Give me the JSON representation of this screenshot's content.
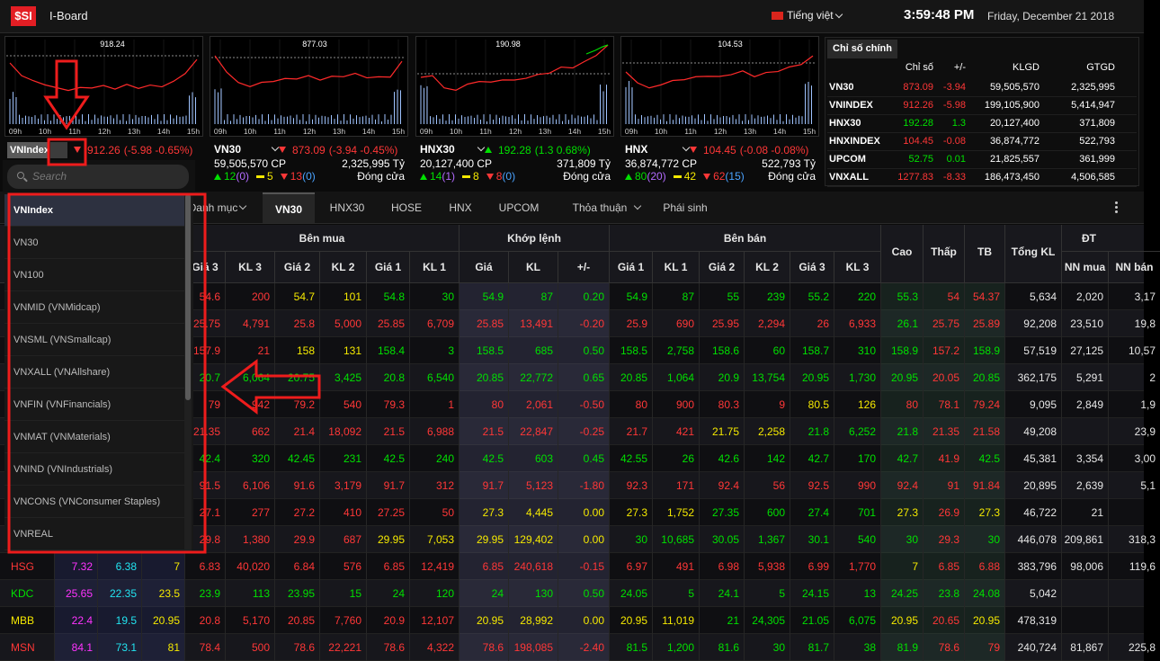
{
  "header": {
    "logo": "$SI",
    "app": "I-Board",
    "language": "Tiếng việt",
    "time": "3:59:48 PM",
    "date": "Friday, December 21 2018"
  },
  "chart_hours": [
    "09h",
    "10h",
    "11h",
    "12h",
    "13h",
    "14h",
    "15h"
  ],
  "mini_charts": [
    {
      "name": "VNIndex",
      "peak": "918.24",
      "price": "912.26",
      "change": "(-5.98 -0.65%)",
      "trend": "down"
    },
    {
      "name": "VN30",
      "peak": "877.03",
      "price": "873.09",
      "change": "(-3.94 -0.45%)",
      "trend": "down",
      "volume": "59,505,570 CP",
      "value": "2,325,995 Tỷ",
      "up": "12",
      "up_ceil": "(0)",
      "unchanged": "5",
      "down": "13",
      "down_floor": "(0)",
      "status": "Đóng cửa"
    },
    {
      "name": "HNX30",
      "peak": "190.98",
      "price": "192.28",
      "change": "(1.3 0.68%)",
      "trend": "up",
      "volume": "20,127,400 CP",
      "value": "371,809 Tỷ",
      "up": "14",
      "up_ceil": "(1)",
      "unchanged": "8",
      "down": "8",
      "down_floor": "(0)",
      "status": "Đóng cửa"
    },
    {
      "name": "HNX",
      "peak": "104.53",
      "price": "104.45",
      "change": "(-0.08 -0.08%)",
      "trend": "down",
      "volume": "36,874,772 CP",
      "value": "522,793 Tỷ",
      "up": "80",
      "up_ceil": "(20)",
      "unchanged": "42",
      "down": "62",
      "down_floor": "(15)",
      "status": "Đóng cửa"
    }
  ],
  "index_panel": {
    "tab": "Chỉ số chính",
    "columns": [
      "Chỉ số",
      "+/-",
      "KLGD",
      "GTGD"
    ],
    "rows": [
      [
        "VN30",
        "873.09",
        "-3.94",
        "59,505,570",
        "2,325,995"
      ],
      [
        "VNINDEX",
        "912.26",
        "-5.98",
        "199,105,900",
        "5,414,947"
      ],
      [
        "HNX30",
        "192.28",
        "1.3",
        "20,127,400",
        "371,809"
      ],
      [
        "HNXINDEX",
        "104.45",
        "-0.08",
        "36,874,772",
        "522,793"
      ],
      [
        "UPCOM",
        "52.75",
        "0.01",
        "21,825,557",
        "361,999"
      ],
      [
        "VNXALL",
        "1277.83",
        "-8.33",
        "186,473,450",
        "4,506,585"
      ]
    ],
    "colors": [
      "r",
      "r",
      "g",
      "r",
      "g",
      "r"
    ]
  },
  "dropdown": {
    "search_placeholder": "Search",
    "items": [
      "VNIndex",
      "VN30",
      "VN100",
      "VNMID (VNMidcap)",
      "VNSML (VNSmallcap)",
      "VNXALL (VNAllshare)",
      "VNFIN (VNFinancials)",
      "VNMAT (VNMaterials)",
      "VNIND (VNIndustrials)",
      "VNCONS (VNConsumer Staples)",
      "VNREAL"
    ],
    "selected": 0
  },
  "tabs": {
    "items": [
      "Danh mục",
      "VN30",
      "HNX30",
      "HOSE",
      "HNX",
      "UPCOM",
      "Thỏa thuận",
      "Phái sinh"
    ],
    "active": 1
  },
  "board": {
    "groups": [
      "Bên mua",
      "Khớp lệnh",
      "Bên bán",
      "ĐT"
    ],
    "tall_columns": [
      "Cao",
      "Thấp",
      "TB",
      "Tổng KL"
    ],
    "sub_columns": [
      "Giá 3",
      "KL 3",
      "Giá 2",
      "KL 2",
      "Giá 1",
      "KL 1",
      "Giá",
      "KL",
      "+/-",
      "Giá 1",
      "KL 1",
      "Giá 2",
      "KL 2",
      "Giá 3",
      "KL 3",
      "NN mua",
      "NN bán"
    ],
    "rows": [
      {
        "cells": [
          "54.6",
          "200",
          "54.7",
          "101",
          "54.8",
          "30",
          "54.9",
          "87",
          "0.20",
          "54.9",
          "87",
          "55",
          "239",
          "55.2",
          "220",
          "55.3",
          "54",
          "54.37",
          "5,634",
          "2,020",
          "3,17"
        ],
        "colors": "rryyggggggggggggrrwww"
      },
      {
        "cells": [
          "25.75",
          "4,791",
          "25.8",
          "5,000",
          "25.85",
          "6,709",
          "25.85",
          "13,491",
          "-0.20",
          "25.9",
          "690",
          "25.95",
          "2,294",
          "26",
          "6,933",
          "26.1",
          "25.75",
          "25.89",
          "92,208",
          "23,510",
          "19,8"
        ],
        "colors": "rrrrrrrrrrrrrrrgrrwww"
      },
      {
        "cells": [
          "157.9",
          "21",
          "158",
          "131",
          "158.4",
          "3",
          "158.5",
          "685",
          "0.50",
          "158.5",
          "2,758",
          "158.6",
          "60",
          "158.7",
          "310",
          "158.9",
          "157.2",
          "158.9",
          "57,519",
          "27,125",
          "10,57"
        ],
        "colors": "rryyggggggggggggrgwww"
      },
      {
        "cells": [
          "20.7",
          "6,064",
          "20.75",
          "3,425",
          "20.8",
          "6,540",
          "20.85",
          "22,772",
          "0.65",
          "20.85",
          "1,064",
          "20.9",
          "13,754",
          "20.95",
          "1,730",
          "20.95",
          "20.05",
          "20.85",
          "362,175",
          "5,291",
          "2"
        ],
        "colors": "ggggggggggggggggrgwww"
      },
      {
        "cells": [
          "79",
          "942",
          "79.2",
          "540",
          "79.3",
          "1",
          "80",
          "2,061",
          "-0.50",
          "80",
          "900",
          "80.3",
          "9",
          "80.5",
          "126",
          "80",
          "78.1",
          "79.24",
          "9,095",
          "2,849",
          "1,9"
        ],
        "colors": "rrrrrrrrrrrrryyrrrwww"
      },
      {
        "cells": [
          "21.35",
          "662",
          "21.4",
          "18,092",
          "21.5",
          "6,988",
          "21.5",
          "22,847",
          "-0.25",
          "21.7",
          "421",
          "21.75",
          "2,258",
          "21.8",
          "6,252",
          "21.8",
          "21.35",
          "21.58",
          "49,208",
          null,
          "23,9"
        ],
        "colors": "rrrrrrrrrrryygggrrwww"
      },
      {
        "cells": [
          "42.4",
          "320",
          "42.45",
          "231",
          "42.5",
          "240",
          "42.5",
          "603",
          "0.45",
          "42.55",
          "26",
          "42.6",
          "142",
          "42.7",
          "170",
          "42.7",
          "41.9",
          "42.5",
          "45,381",
          "3,354",
          "3,00"
        ],
        "colors": "ggggggggggggggggrgwww"
      },
      {
        "cells": [
          "91.5",
          "6,106",
          "91.6",
          "3,179",
          "91.7",
          "312",
          "91.7",
          "5,123",
          "-1.80",
          "92.3",
          "171",
          "92.4",
          "56",
          "92.5",
          "990",
          "92.4",
          "91",
          "91.84",
          "20,895",
          "2,639",
          "5,1"
        ],
        "colors": "rrrrrrrrrrrrrrrrrrwww"
      },
      {
        "cells": [
          "27.1",
          "277",
          "27.2",
          "410",
          "27.25",
          "50",
          "27.3",
          "4,445",
          "0.00",
          "27.3",
          "1,752",
          "27.35",
          "600",
          "27.4",
          "701",
          "27.3",
          "26.9",
          "27.3",
          "46,722",
          "21",
          null
        ],
        "colors": "rrrrrryyyyyggggyrywww"
      },
      {
        "cells": [
          "29.8",
          "1,380",
          "29.9",
          "687",
          "29.95",
          "7,053",
          "29.95",
          "129,402",
          "0.00",
          "30",
          "10,685",
          "30.05",
          "1,367",
          "30.1",
          "540",
          "30",
          "29.3",
          "30",
          "446,078",
          "209,861",
          "318,3"
        ],
        "colors": "rrrryyyyygggggggrgwww"
      },
      {
        "left": [
          "HSG",
          "7.32",
          "6.38",
          "7"
        ],
        "left_colors": "rpcy",
        "cells": [
          "6.83",
          "40,020",
          "6.84",
          "576",
          "6.85",
          "12,419",
          "6.85",
          "240,618",
          "-0.15",
          "6.97",
          "491",
          "6.98",
          "5,938",
          "6.99",
          "1,770",
          "7",
          "6.85",
          "6.88",
          "383,796",
          "98,006",
          "119,6"
        ],
        "colors": "rrrrrrrrrrrrrrryrrwww"
      },
      {
        "left": [
          "KDC",
          "25.65",
          "22.35",
          "23.5"
        ],
        "left_colors": "gpcy",
        "cells": [
          "23.9",
          "113",
          "23.95",
          "15",
          "24",
          "120",
          "24",
          "130",
          "0.50",
          "24.05",
          "5",
          "24.1",
          "5",
          "24.15",
          "13",
          "24.25",
          "23.8",
          "24.08",
          "5,042",
          null,
          null
        ],
        "colors": "ggggggggggggggggggwww"
      },
      {
        "left": [
          "MBB",
          "22.4",
          "19.5",
          "20.95"
        ],
        "left_colors": "ypcy",
        "cells": [
          "20.8",
          "5,170",
          "20.85",
          "7,760",
          "20.9",
          "12,107",
          "20.95",
          "28,992",
          "0.00",
          "20.95",
          "11,019",
          "21",
          "24,305",
          "21.05",
          "6,075",
          "20.95",
          "20.65",
          "20.95",
          "478,319",
          null,
          null
        ],
        "colors": "rrrrrryyyyyggggyrywww"
      },
      {
        "left": [
          "MSN",
          "84.1",
          "73.1",
          "81"
        ],
        "left_colors": "rpcy",
        "cells": [
          "78.4",
          "500",
          "78.6",
          "22,221",
          "78.6",
          "4,322",
          "78.6",
          "198,085",
          "-2.40",
          "81.5",
          "1,200",
          "81.6",
          "30",
          "81.7",
          "38",
          "81.9",
          "78.6",
          "79",
          "240,724",
          "81,867",
          "225,8"
        ],
        "colors": "rrrrrrrrrgggggggrrwww"
      }
    ]
  }
}
